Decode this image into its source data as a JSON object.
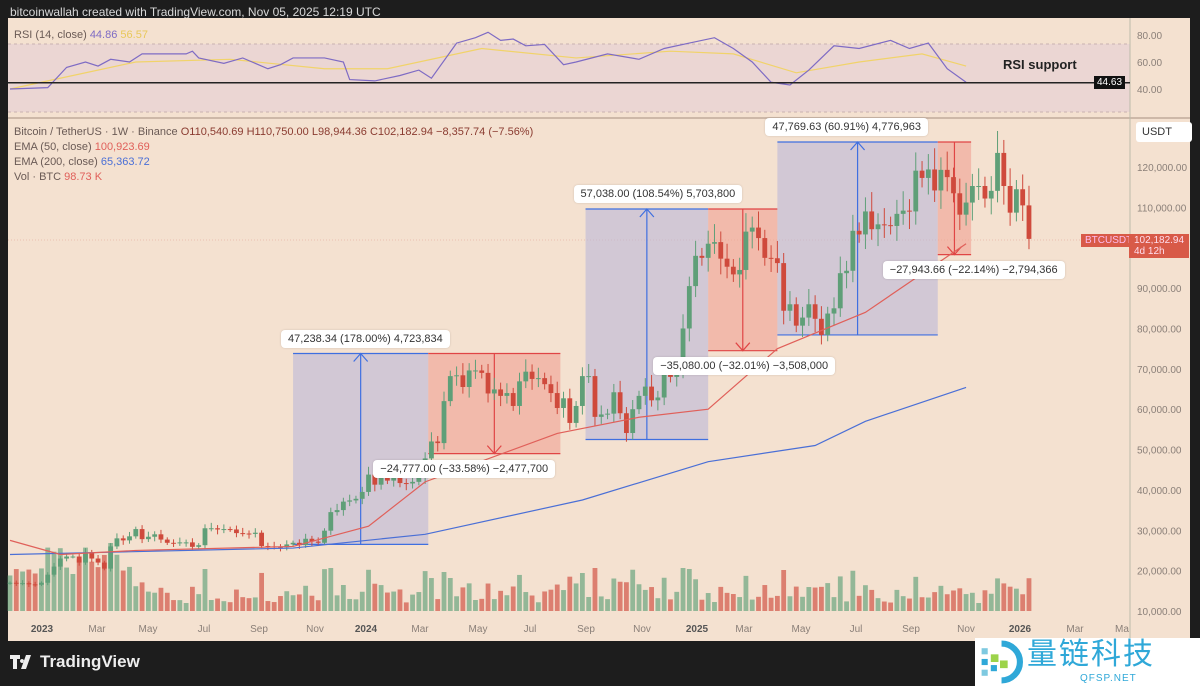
{
  "header": {
    "attribution": "bitcoinwallah created with TradingView.com, Nov 05, 2025 12:19 UTC"
  },
  "rsi_pane": {
    "label": "RSI (14, close)",
    "rsi_value": "44.86",
    "ma_value": "56.57",
    "support_label": "RSI support",
    "support_value": "44.63",
    "axis_ticks": [
      "80.00",
      "60.00",
      "40.00"
    ]
  },
  "legend": {
    "symbol": "Bitcoin / TetherUS · 1W · Binance",
    "open": "O110,540.69",
    "high": "H110,750.00",
    "low": "L98,944.36",
    "close": "C102,182.94",
    "change": "−8,357.74 (−7.56%)",
    "ema50_label": "EMA (50, close)",
    "ema50_value": "100,923.69",
    "ema200_label": "EMA (200, close)",
    "ema200_value": "65,363.72",
    "vol_label": "Vol · BTC",
    "vol_value": "98.73 K"
  },
  "price_axis": {
    "currency": "USDT",
    "ticks": [
      "120,000.00",
      "110,000.00",
      "90,000.00",
      "80,000.00",
      "70,000.00",
      "60,000.00",
      "50,000.00",
      "40,000.00",
      "30,000.00",
      "20,000.00",
      "10,000.00"
    ],
    "last_symbol": "BTCUSDT",
    "last_price": "102,182.94",
    "countdown": "4d 12h"
  },
  "time_axis": {
    "ticks": [
      "2023",
      "Mar",
      "May",
      "Jul",
      "Sep",
      "Nov",
      "2024",
      "Mar",
      "May",
      "Jul",
      "Sep",
      "Nov",
      "2025",
      "Mar",
      "May",
      "Jul",
      "Sep",
      "Nov",
      "2026",
      "Mar",
      "Ma"
    ]
  },
  "colors": {
    "up": "#5f9f78",
    "down": "#cf4a3c",
    "ema50": "#e0605a",
    "ema200": "#4a6fd6",
    "rsi": "#7e6bc4",
    "rsi_ma": "#f1d36a",
    "rise_box": "#3f6fe0",
    "fall_box": "#e04545"
  },
  "chart_data": {
    "type": "candlestick",
    "title": "Bitcoin / TetherUS · 1W · Binance",
    "interval": "1W",
    "first_week": "2022-11-28",
    "ylim": [
      8000,
      130000
    ],
    "closes_k": [
      17,
      16.8,
      16.9,
      16.6,
      16.5,
      17,
      19,
      21,
      23,
      23.5,
      23.5,
      22,
      24.5,
      23,
      22,
      20.5,
      26,
      28,
      27.5,
      28.5,
      30.3,
      27.8,
      28.4,
      29,
      27.7,
      26.9,
      26.8,
      27,
      27,
      25.9,
      26.3,
      30.5,
      30.5,
      30.2,
      30.3,
      30.2,
      29.3,
      29.2,
      29.1,
      29.4,
      26.1,
      26,
      25.9,
      25.8,
      26.5,
      26.9,
      26.3,
      27.9,
      27.2,
      26.9,
      29.9,
      34.5,
      35,
      37.1,
      37.4,
      37.8,
      39.5,
      43.8,
      41.3,
      43.6,
      42.3,
      43.9,
      41.7,
      41.6,
      42,
      43,
      47.8,
      52,
      51.6,
      62,
      68.2,
      68.4,
      65.5,
      69.6,
      69.6,
      69,
      63.9,
      64.9,
      63.3,
      64,
      60.8,
      66.9,
      69.3,
      67.5,
      67.7,
      66.2,
      64,
      60.3,
      62.7,
      56.6,
      60.8,
      68.2,
      68.2,
      58.1,
      58.7,
      58.9,
      64.2,
      59,
      54.1,
      60,
      63.3,
      65.6,
      62.2,
      62.9,
      69,
      68,
      69.4,
      80,
      90.5,
      98,
      97.5,
      101,
      101.4,
      97.3,
      95.3,
      93.4,
      94.5,
      104,
      105,
      102.4,
      97.5,
      97.4,
      96.2,
      84.4,
      86,
      80.7,
      82.7,
      86,
      82.4,
      78.4,
      83.7,
      85,
      93.7,
      94.3,
      104.2,
      103.3,
      109,
      104.6,
      105.8,
      105.6,
      105.4,
      108.4,
      109.2,
      109,
      119.1,
      117.3,
      119.4,
      114.2,
      119.3,
      117.5,
      113.5,
      108.2,
      111.2,
      115.3,
      115.3,
      112.2,
      114.1,
      123.5,
      115.3,
      108.7,
      114.5,
      110.5,
      102.2
    ],
    "ema50_k": [
      [
        0,
        27.5
      ],
      [
        8,
        24
      ],
      [
        20,
        25
      ],
      [
        45,
        26
      ],
      [
        57,
        31
      ],
      [
        66,
        42
      ],
      [
        87,
        54
      ],
      [
        100,
        58
      ],
      [
        111,
        60
      ],
      [
        122,
        75
      ],
      [
        136,
        84
      ],
      [
        152,
        101
      ]
    ],
    "ema200_k": [
      [
        0,
        24
      ],
      [
        45,
        25.6
      ],
      [
        66,
        29
      ],
      [
        91,
        37.5
      ],
      [
        111,
        47
      ],
      [
        128,
        51
      ],
      [
        136,
        57
      ],
      [
        152,
        65.4
      ]
    ],
    "rsi": [
      [
        0,
        40
      ],
      [
        6,
        41
      ],
      [
        9,
        56
      ],
      [
        12,
        60
      ],
      [
        14,
        57
      ],
      [
        16,
        62
      ],
      [
        19,
        60
      ],
      [
        21,
        66
      ],
      [
        28,
        66
      ],
      [
        29,
        68
      ],
      [
        30,
        63
      ],
      [
        34,
        59
      ],
      [
        37,
        63
      ],
      [
        41,
        55
      ],
      [
        43,
        58
      ],
      [
        45,
        63
      ],
      [
        50,
        63
      ],
      [
        53,
        60
      ],
      [
        54,
        47
      ],
      [
        58,
        46
      ],
      [
        62,
        50
      ],
      [
        65,
        54
      ],
      [
        67,
        48
      ],
      [
        71,
        74
      ],
      [
        74,
        78
      ],
      [
        76,
        82
      ],
      [
        78,
        76
      ],
      [
        80,
        77
      ],
      [
        82,
        72
      ],
      [
        85,
        73
      ],
      [
        88,
        58
      ],
      [
        90,
        60
      ],
      [
        95,
        66
      ],
      [
        100,
        62
      ],
      [
        104,
        70
      ],
      [
        108,
        74
      ],
      [
        112,
        78
      ],
      [
        115,
        70
      ],
      [
        118,
        60
      ],
      [
        121,
        45
      ],
      [
        124,
        43
      ],
      [
        127,
        54
      ],
      [
        131,
        72
      ],
      [
        135,
        70
      ],
      [
        140,
        76
      ],
      [
        143,
        70
      ],
      [
        146,
        74
      ],
      [
        149,
        55
      ],
      [
        152,
        45
      ]
    ],
    "rsi_ma": [
      [
        0,
        40
      ],
      [
        10,
        50
      ],
      [
        20,
        60
      ],
      [
        35,
        62
      ],
      [
        50,
        55
      ],
      [
        60,
        55
      ],
      [
        75,
        70
      ],
      [
        90,
        63
      ],
      [
        105,
        68
      ],
      [
        115,
        66
      ],
      [
        125,
        52
      ],
      [
        135,
        60
      ],
      [
        145,
        66
      ],
      [
        152,
        57
      ]
    ],
    "measurements": [
      {
        "label": "47,238.34 (178.00%) 4,723,834",
        "dir": "up",
        "from_week": 45,
        "to_week": 66.5,
        "low_k": 26.5,
        "high_k": 73.8
      },
      {
        "label": "−24,777.00 (−33.58%) −2,477,700",
        "dir": "down",
        "from_week": 66.5,
        "to_week": 87.5,
        "low_k": 49,
        "high_k": 73.8
      },
      {
        "label": "57,038.00 (108.54%) 5,703,800",
        "dir": "up",
        "from_week": 91.5,
        "to_week": 111,
        "low_k": 52.5,
        "high_k": 109.6
      },
      {
        "label": "−35,080.00 (−32.01%) −3,508,000",
        "dir": "down",
        "from_week": 111,
        "to_week": 122,
        "low_k": 74.5,
        "high_k": 109.6
      },
      {
        "label": "47,769.63 (60.91%) 4,776,963",
        "dir": "up",
        "from_week": 122,
        "to_week": 147.5,
        "low_k": 78.4,
        "high_k": 126.2
      },
      {
        "label": "−27,943.66 (−22.14%) −2,794,366",
        "dir": "down",
        "from_week": 147.5,
        "to_week": 152.8,
        "low_k": 98.3,
        "high_k": 126.2
      }
    ]
  },
  "footer": {
    "brand": "TradingView"
  },
  "watermark": {
    "cn": "量链科技",
    "en": "QFSP.NET"
  }
}
